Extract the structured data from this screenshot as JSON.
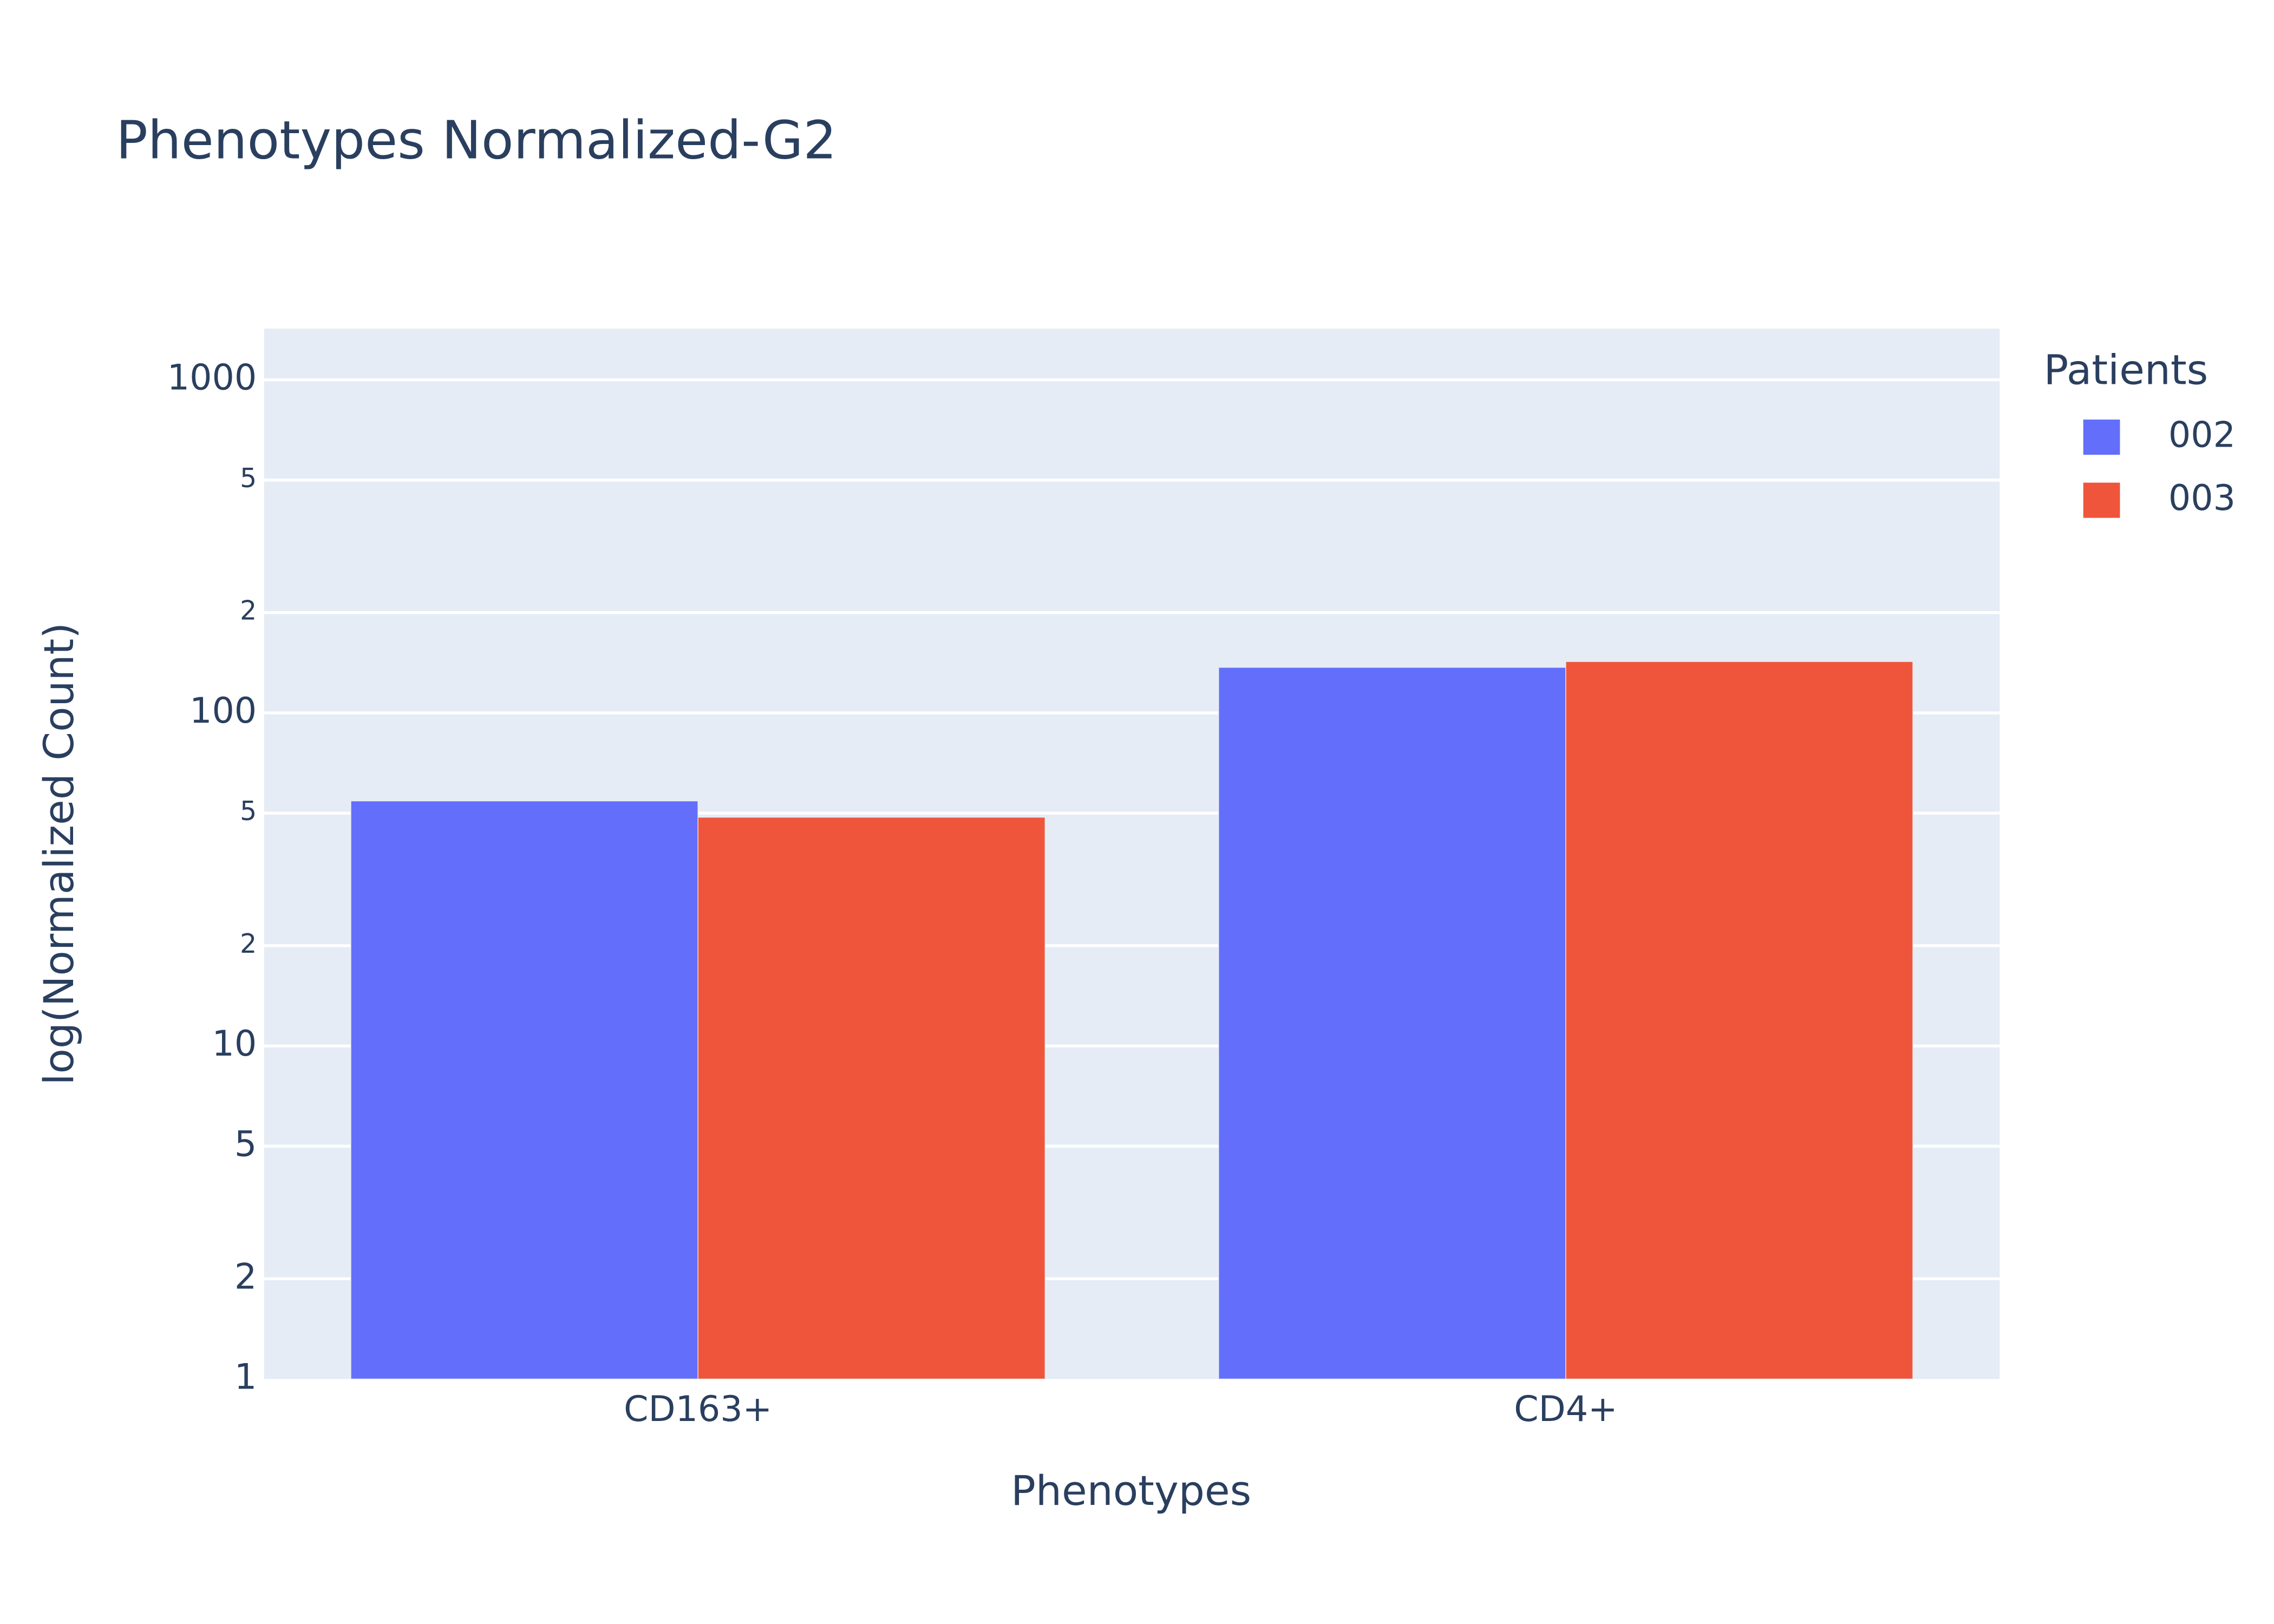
{
  "chart_data": {
    "type": "bar",
    "title": "Phenotypes Normalized-G2",
    "x_label": "Phenotypes",
    "y_label": "log(Normalized Count)",
    "legend_title": "Patients",
    "categories": [
      "CD163+",
      "CD4+"
    ],
    "series": [
      {
        "name": "002",
        "color": "#636efa",
        "values": [
          54.4,
          137
        ]
      },
      {
        "name": "003",
        "color": "#ef553b",
        "values": [
          48.6,
          142.6
        ]
      }
    ],
    "log_y": true,
    "ylim": [
      1,
      1425
    ],
    "yticks": [
      1,
      2,
      5,
      10,
      {
        "value": 20,
        "label": "2"
      },
      {
        "value": 50,
        "label": "5"
      },
      100,
      {
        "value": 200,
        "label": "2"
      },
      {
        "value": 500,
        "label": "5"
      },
      1000
    ],
    "grid": true,
    "legend_position": "right"
  }
}
